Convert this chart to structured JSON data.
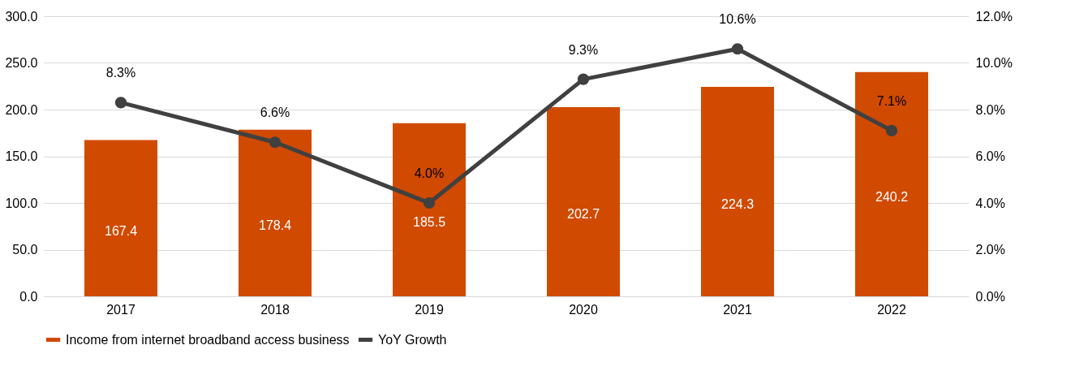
{
  "chart_data": {
    "type": "bar",
    "categories": [
      "2017",
      "2018",
      "2019",
      "2020",
      "2021",
      "2022"
    ],
    "series": [
      {
        "name": "Income from internet broadband access business",
        "color": "#d04a02",
        "values": [
          167.4,
          178.4,
          185.5,
          202.7,
          224.3,
          240.2
        ],
        "value_labels": [
          "167.4",
          "178.4",
          "185.5",
          "202.7",
          "224.3",
          "240.2"
        ]
      },
      {
        "name": "YoY Growth",
        "type": "line",
        "axis": "y2",
        "color": "#404040",
        "marker": "circle",
        "values": [
          8.3,
          6.6,
          4.0,
          9.3,
          10.6,
          7.1
        ],
        "value_labels": [
          "8.3%",
          "6.6%",
          "4.0%",
          "9.3%",
          "10.6%",
          "7.1%"
        ]
      }
    ],
    "ylim": [
      0,
      300
    ],
    "yticks": [
      {
        "value": 0,
        "label": "0.0"
      },
      {
        "value": 50,
        "label": "50.0"
      },
      {
        "value": 100,
        "label": "100.0"
      },
      {
        "value": 150,
        "label": "150.0"
      },
      {
        "value": 200,
        "label": "200.0"
      },
      {
        "value": 250,
        "label": "250.0"
      },
      {
        "value": 300,
        "label": "300.0"
      }
    ],
    "y2lim": [
      0,
      12
    ],
    "y2ticks": [
      {
        "value": 0,
        "label": "0.0%"
      },
      {
        "value": 2,
        "label": "2.0%"
      },
      {
        "value": 4,
        "label": "4.0%"
      },
      {
        "value": 6,
        "label": "6.0%"
      },
      {
        "value": 8,
        "label": "8.0%"
      },
      {
        "value": 10,
        "label": "10.0%"
      },
      {
        "value": 12,
        "label": "12.0%"
      }
    ],
    "grid": "y",
    "legend": "bottom"
  }
}
